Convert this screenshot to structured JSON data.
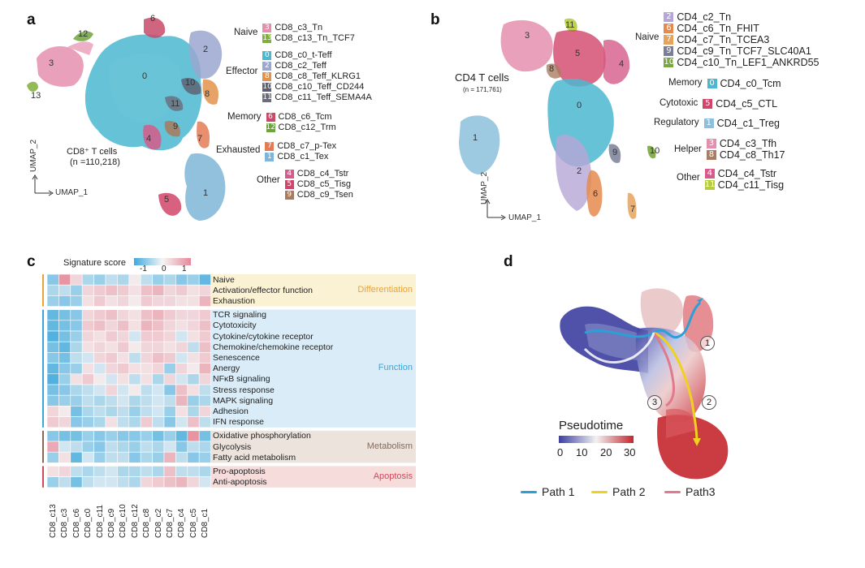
{
  "panels": {
    "a": "a",
    "b": "b",
    "c": "c",
    "d": "d"
  },
  "panel_a": {
    "cells_title": "CD8⁺ T cells",
    "cells_count": "(n =110,218)",
    "axis_x": "UMAP_1",
    "axis_y": "UMAP_2",
    "cluster_numbers": [
      "0",
      "1",
      "2",
      "3",
      "4",
      "5",
      "6",
      "7",
      "8",
      "9",
      "10",
      "11",
      "12",
      "13"
    ],
    "legend": [
      {
        "group": "Naive",
        "items": [
          {
            "num": "3",
            "label": "CD8_c3_Tn",
            "color": "#e58fae"
          },
          {
            "num": "13",
            "label": "CD8_c13_Tn_TCF7",
            "color": "#7fae3a"
          }
        ]
      },
      {
        "group": "Effector",
        "items": [
          {
            "num": "0",
            "label": "CD8_c0_t-Teff",
            "color": "#4bb8d0"
          },
          {
            "num": "2",
            "label": "CD8_c2_Teff",
            "color": "#9aa7cf"
          },
          {
            "num": "8",
            "label": "CD8_c8_Teff_KLRG1",
            "color": "#e3924a"
          },
          {
            "num": "10",
            "label": "CD8_c10_Teff_CD244",
            "color": "#5e5e6e"
          },
          {
            "num": "11",
            "label": "CD8_c11_Teff_SEMA4A",
            "color": "#6b6b7a"
          }
        ]
      },
      {
        "group": "Memory",
        "items": [
          {
            "num": "6",
            "label": "CD8_c6_Tcm",
            "color": "#c84a68"
          },
          {
            "num": "12",
            "label": "CD8_c12_Trm",
            "color": "#6ea43c"
          }
        ]
      },
      {
        "group": "Exhausted",
        "items": [
          {
            "num": "7",
            "label": "CD8_c7_p-Tex",
            "color": "#e37b56"
          },
          {
            "num": "1",
            "label": "CD8_c1_Tex",
            "color": "#7fb6d8"
          }
        ]
      },
      {
        "group": "Other",
        "items": [
          {
            "num": "4",
            "label": "CD8_c4_Tstr",
            "color": "#d65a8a"
          },
          {
            "num": "5",
            "label": "CD8_c5_Tisg",
            "color": "#d2456a"
          },
          {
            "num": "9",
            "label": "CD8_c9_Tsen",
            "color": "#a97a5c"
          }
        ]
      }
    ]
  },
  "panel_b": {
    "cells_title": "CD4 T cells",
    "cells_count": "(n = 171,761)",
    "axis_x": "UMAP_1",
    "axis_y": "UMAP_2",
    "cluster_numbers": [
      "0",
      "1",
      "2",
      "3",
      "4",
      "5",
      "6",
      "7",
      "8",
      "9",
      "10",
      "11"
    ],
    "legend": [
      {
        "group": "Naive",
        "items": [
          {
            "num": "2",
            "label": "CD4_c2_Tn",
            "color": "#b6a6d6"
          },
          {
            "num": "6",
            "label": "CD4_c6_Tn_FHIT",
            "color": "#e58a4e"
          },
          {
            "num": "7",
            "label": "CD4_c7_Tn_TCEA3",
            "color": "#e7a25c"
          },
          {
            "num": "9",
            "label": "CD4_c9_Tn_TCF7_SLC40A1",
            "color": "#7a7f96"
          },
          {
            "num": "10",
            "label": "CD4_c10_Tn_LEF1_ANKRD55",
            "color": "#7aa83e"
          }
        ]
      },
      {
        "group": "Memory",
        "items": [
          {
            "num": "0",
            "label": "CD4_c0_Tcm",
            "color": "#4bb8d0"
          }
        ]
      },
      {
        "group": "Cytotoxic",
        "items": [
          {
            "num": "5",
            "label": "CD4_c5_CTL",
            "color": "#d2456a"
          }
        ]
      },
      {
        "group": "Regulatory",
        "items": [
          {
            "num": "1",
            "label": "CD4_c1_Treg",
            "color": "#8cc0dc"
          }
        ]
      },
      {
        "group": "Helper",
        "items": [
          {
            "num": "3",
            "label": "CD4_c3_Tfh",
            "color": "#e58fae"
          },
          {
            "num": "8",
            "label": "CD4_c8_Th17",
            "color": "#a87d62"
          }
        ]
      },
      {
        "group": "Other",
        "items": [
          {
            "num": "4",
            "label": "CD4_c4_Tstr",
            "color": "#d65a8a"
          },
          {
            "num": "11",
            "label": "CD4_c11_Tisg",
            "color": "#b6cc3e"
          }
        ]
      }
    ]
  },
  "panel_c": {
    "colorbar_title": "Signature score",
    "colorbar_ticks": [
      "-1",
      "0",
      "1"
    ],
    "columns": [
      "CD8_c13",
      "CD8_c3",
      "CD8_c6",
      "CD8_c0",
      "CD8_c11",
      "CD8_c9",
      "CD8_c10",
      "CD8_c12",
      "CD8_c8",
      "CD8_c2",
      "CD8_c7",
      "CD8_c4",
      "CD8_c5",
      "CD8_c1"
    ],
    "categories": [
      {
        "name": "Differentiation",
        "color": "#e8a33a",
        "bg": "#fbf2d4",
        "rows": [
          "Naive",
          "Activation/effector function",
          "Exhaustion"
        ]
      },
      {
        "name": "Function",
        "color": "#3aa6da",
        "bg": "#d9ecf7",
        "rows": [
          "TCR signaling",
          "Cytotoxicity",
          "Cytokine/cytokine receptor",
          "Chemokine/chemokine receptor",
          "Senescence",
          "Anergy",
          "NFκB signaling",
          "Stress response",
          "MAPK signaling",
          "Adhesion",
          "IFN response"
        ]
      },
      {
        "name": "Metabolism",
        "color": "#8a6a55",
        "bg": "#ece3dd",
        "rows": [
          "Oxidative phosphorylation",
          "Glycolysis",
          "Fatty acid metabolism"
        ]
      },
      {
        "name": "Apoptosis",
        "color": "#d24a5a",
        "bg": "#f7dcdc",
        "rows": [
          "Pro-apoptosis",
          "Anti-apoptosis"
        ]
      }
    ],
    "scores": [
      [
        -0.6,
        0.9,
        0.3,
        -0.4,
        -0.5,
        -0.3,
        -0.4,
        0.1,
        -0.3,
        -0.5,
        -0.4,
        -0.6,
        -0.5,
        -0.8
      ],
      [
        -0.4,
        -0.3,
        -0.5,
        0.3,
        0.4,
        0.5,
        0.4,
        0.2,
        0.5,
        0.6,
        0.3,
        0.4,
        0.2,
        0.3
      ],
      [
        -0.5,
        -0.6,
        -0.5,
        0.2,
        0.4,
        0.2,
        0.3,
        0.1,
        0.4,
        0.3,
        0.3,
        0.2,
        0.2,
        0.6
      ],
      [
        -0.8,
        -0.7,
        -0.6,
        0.3,
        0.4,
        0.5,
        0.3,
        0.2,
        0.5,
        0.6,
        0.4,
        0.3,
        0.3,
        0.4
      ],
      [
        -0.8,
        -0.7,
        -0.6,
        0.4,
        0.5,
        0.3,
        0.5,
        0.2,
        0.6,
        0.5,
        0.3,
        0.2,
        0.3,
        0.5
      ],
      [
        -0.9,
        -0.7,
        -0.5,
        0.3,
        0.2,
        0.4,
        0.3,
        -0.2,
        0.4,
        0.4,
        0.3,
        -0.2,
        0.2,
        0.4
      ],
      [
        -0.7,
        -0.8,
        -0.4,
        0.2,
        0.3,
        0.2,
        0.4,
        0.1,
        0.3,
        0.3,
        0.2,
        0.3,
        -0.3,
        0.5
      ],
      [
        -0.6,
        -0.7,
        -0.3,
        -0.2,
        0.3,
        0.4,
        0.2,
        -0.3,
        0.3,
        0.5,
        0.4,
        -0.2,
        0.2,
        0.4
      ],
      [
        -0.8,
        -0.6,
        -0.5,
        0.2,
        -0.2,
        0.3,
        0.4,
        0.2,
        0.2,
        0.3,
        -0.5,
        0.3,
        0.1,
        0.6
      ],
      [
        -0.9,
        -0.5,
        0.2,
        0.4,
        0.1,
        -0.2,
        0.2,
        -0.3,
        0.2,
        -0.4,
        0.3,
        -0.2,
        -0.4,
        0.3
      ],
      [
        -0.7,
        -0.6,
        -0.4,
        -0.3,
        -0.2,
        0.3,
        -0.2,
        0.1,
        -0.3,
        -0.2,
        -0.6,
        0.5,
        0.2,
        -0.3
      ],
      [
        -0.6,
        -0.5,
        -0.5,
        -0.3,
        -0.4,
        -0.3,
        -0.2,
        -0.4,
        -0.3,
        -0.2,
        -0.3,
        0.6,
        -0.5,
        -0.4
      ],
      [
        0.3,
        0.1,
        -0.7,
        -0.4,
        -0.3,
        -0.4,
        -0.3,
        -0.5,
        -0.3,
        -0.2,
        -0.5,
        0.2,
        -0.4,
        0.3
      ],
      [
        0.4,
        0.3,
        -0.6,
        -0.5,
        -0.4,
        0.2,
        -0.3,
        -0.4,
        0.4,
        -0.3,
        -0.6,
        -0.2,
        0.5,
        -0.3
      ],
      [
        -0.6,
        -0.7,
        -0.7,
        -0.5,
        -0.6,
        -0.5,
        -0.6,
        -0.6,
        -0.5,
        -0.7,
        -0.5,
        -0.8,
        0.9,
        -0.7
      ],
      [
        0.7,
        -0.2,
        -0.3,
        -0.5,
        -0.6,
        -0.3,
        -0.4,
        -0.5,
        -0.3,
        -0.4,
        -0.2,
        -0.6,
        -0.3,
        -0.4
      ],
      [
        -0.5,
        0.2,
        -0.8,
        -0.2,
        -0.5,
        -0.3,
        -0.3,
        -0.6,
        -0.4,
        -0.5,
        0.6,
        -0.3,
        -0.6,
        -0.5
      ],
      [
        0.2,
        0.3,
        -0.3,
        -0.4,
        -0.3,
        -0.2,
        -0.4,
        -0.4,
        -0.3,
        -0.4,
        0.5,
        -0.3,
        -0.3,
        -0.4
      ],
      [
        -0.5,
        -0.3,
        -0.7,
        -0.3,
        -0.2,
        -0.2,
        -0.3,
        -0.4,
        0.3,
        0.4,
        0.5,
        0.6,
        0.3,
        -0.2
      ],
      [
        -0.4,
        -0.3,
        -0.8,
        -0.4,
        -0.5,
        -0.2,
        -0.3,
        -0.5,
        -0.3,
        -0.4,
        0.3,
        0.5,
        -0.2,
        -0.3
      ]
    ]
  },
  "panel_d": {
    "colorbar_title": "Pseudotime",
    "colorbar_ticks": [
      "0",
      "10",
      "20",
      "30"
    ],
    "path_markers": [
      "1",
      "2",
      "3"
    ],
    "paths": [
      {
        "label": "Path 1",
        "color": "#2a9fd8"
      },
      {
        "label": "Path 2",
        "color": "#f0d21e"
      },
      {
        "label": "Path3",
        "color": "#e07a8c"
      }
    ]
  }
}
